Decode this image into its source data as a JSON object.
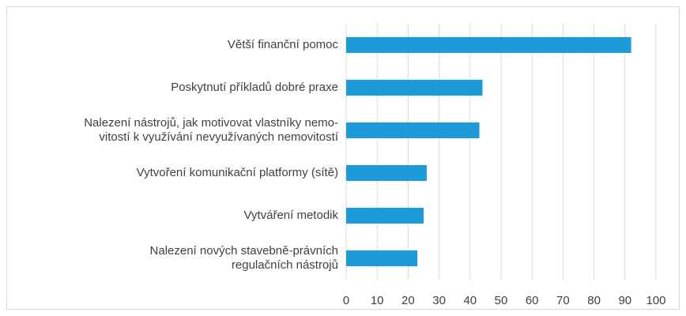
{
  "chart_data": {
    "type": "bar",
    "orientation": "horizontal",
    "categories": [
      "Větší finanční pomoc",
      "Poskytnutí příkladů dobré praxe",
      "Nalezení nástrojů, jak motivovat vlastníky nemo-\nvitostí k využívání nevyužívaných nemovitostí",
      "Vytvoření komunikační platformy (sítě)",
      "Vytváření metodik",
      "Nalezení nových stavebně-právních\nregulačních nástrojů"
    ],
    "values": [
      92,
      44,
      43,
      26,
      25,
      23
    ],
    "color": "#1d9bd8",
    "xlim": [
      0,
      100
    ],
    "xticks": [
      0,
      10,
      20,
      30,
      40,
      50,
      60,
      70,
      80,
      90,
      100
    ],
    "grid": true
  }
}
